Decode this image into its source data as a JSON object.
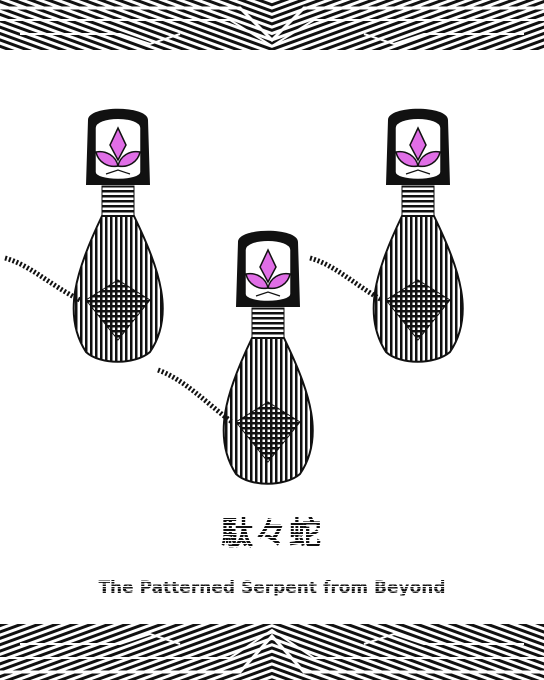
{
  "title_jp": "駄々蛇",
  "title_en": "The Patterned Serpent from Beyond",
  "colors": {
    "ink": "#111111",
    "accent": "#e06ee6",
    "paper": "#ffffff"
  }
}
